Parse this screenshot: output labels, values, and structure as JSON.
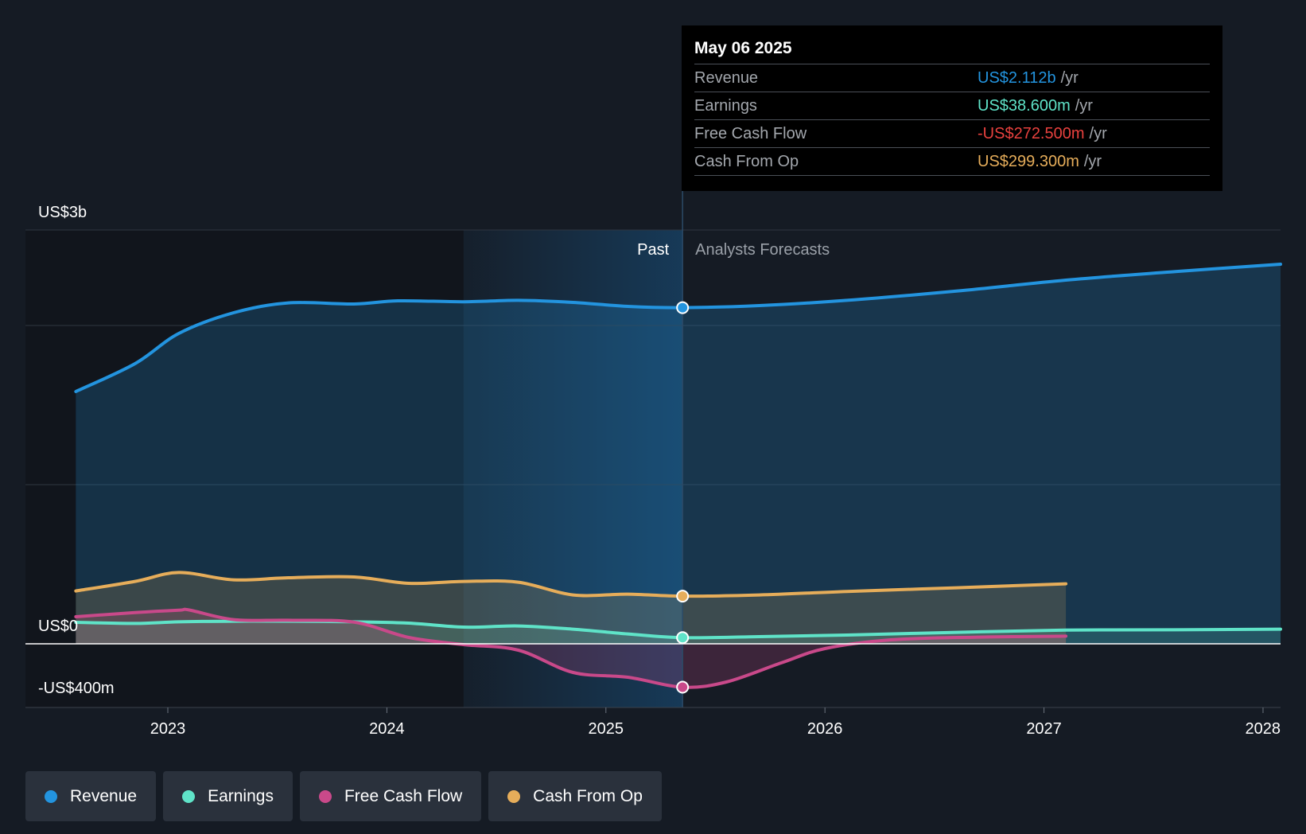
{
  "chart_data": {
    "type": "area",
    "title": "",
    "x_unit": "year",
    "y_unit": "US$ millions",
    "ylim": [
      -400,
      2600
    ],
    "y_tick_labels": [
      {
        "value": 2600,
        "label": "US$3b"
      },
      {
        "value": 0,
        "label": "US$0"
      },
      {
        "value": -400,
        "label": "-US$400m"
      }
    ],
    "x_ticks": [
      2023,
      2024,
      2025,
      2026,
      2027,
      2028
    ],
    "xlim": [
      2022.35,
      2028.08
    ],
    "past_start": 2024.35,
    "divider": 2025.35,
    "past_label": "Past",
    "forecast_label": "Analysts Forecasts",
    "series": [
      {
        "name": "Revenue",
        "color": "#2394df",
        "fill": true,
        "marker": 2112,
        "points": [
          [
            2022.58,
            1585
          ],
          [
            2022.85,
            1760
          ],
          [
            2023.05,
            1950
          ],
          [
            2023.3,
            2080
          ],
          [
            2023.55,
            2142
          ],
          [
            2023.85,
            2135
          ],
          [
            2024.05,
            2155
          ],
          [
            2024.35,
            2149
          ],
          [
            2024.6,
            2158
          ],
          [
            2024.85,
            2145
          ],
          [
            2025.1,
            2120
          ],
          [
            2025.35,
            2112
          ],
          [
            2025.7,
            2125
          ],
          [
            2026.1,
            2158
          ],
          [
            2026.6,
            2216
          ],
          [
            2027.1,
            2285
          ],
          [
            2027.6,
            2339
          ],
          [
            2028.08,
            2385
          ]
        ]
      },
      {
        "name": "Earnings",
        "color": "#5fe3c8",
        "fill": true,
        "marker": 38.6,
        "points": [
          [
            2022.58,
            135
          ],
          [
            2022.85,
            128
          ],
          [
            2023.05,
            138
          ],
          [
            2023.3,
            142
          ],
          [
            2023.55,
            142
          ],
          [
            2023.85,
            138
          ],
          [
            2024.1,
            130
          ],
          [
            2024.35,
            105
          ],
          [
            2024.6,
            112
          ],
          [
            2024.85,
            92
          ],
          [
            2025.1,
            62
          ],
          [
            2025.35,
            38.6
          ],
          [
            2025.7,
            45
          ],
          [
            2026.1,
            55
          ],
          [
            2026.6,
            72
          ],
          [
            2027.1,
            86
          ],
          [
            2027.6,
            88
          ],
          [
            2028.08,
            92
          ]
        ]
      },
      {
        "name": "Free Cash Flow",
        "color": "#c9498a",
        "fill": true,
        "marker": -272.5,
        "points": [
          [
            2022.58,
            170
          ],
          [
            2022.85,
            196
          ],
          [
            2023.05,
            211
          ],
          [
            2023.1,
            212
          ],
          [
            2023.3,
            152
          ],
          [
            2023.55,
            148
          ],
          [
            2023.85,
            136
          ],
          [
            2024.1,
            40
          ],
          [
            2024.35,
            -5
          ],
          [
            2024.6,
            -40
          ],
          [
            2024.85,
            -180
          ],
          [
            2025.1,
            -210
          ],
          [
            2025.35,
            -272.5
          ],
          [
            2025.55,
            -240
          ],
          [
            2025.8,
            -120
          ],
          [
            2026.0,
            -30
          ],
          [
            2026.3,
            25
          ],
          [
            2026.7,
            42
          ],
          [
            2027.1,
            48
          ]
        ]
      },
      {
        "name": "Cash From Op",
        "color": "#e6ad5a",
        "fill": true,
        "marker": 299.3,
        "points": [
          [
            2022.58,
            332
          ],
          [
            2022.85,
            392
          ],
          [
            2023.05,
            448
          ],
          [
            2023.3,
            402
          ],
          [
            2023.55,
            415
          ],
          [
            2023.85,
            420
          ],
          [
            2024.1,
            380
          ],
          [
            2024.35,
            392
          ],
          [
            2024.6,
            387
          ],
          [
            2024.85,
            307
          ],
          [
            2025.1,
            312
          ],
          [
            2025.35,
            299.3
          ],
          [
            2025.7,
            307
          ],
          [
            2026.1,
            329
          ],
          [
            2026.6,
            352
          ],
          [
            2027.1,
            377
          ]
        ]
      }
    ]
  },
  "tooltip": {
    "date": "May 06 2025",
    "rows": [
      {
        "name": "Revenue",
        "value": "US$2.112b",
        "unit": "/yr",
        "color": "#2394df"
      },
      {
        "name": "Earnings",
        "value": "US$38.600m",
        "unit": "/yr",
        "color": "#5fe3c8"
      },
      {
        "name": "Free Cash Flow",
        "value": "-US$272.500m",
        "unit": "/yr",
        "color": "#e8413e"
      },
      {
        "name": "Cash From Op",
        "value": "US$299.300m",
        "unit": "/yr",
        "color": "#e6ad5a"
      }
    ]
  },
  "legend": [
    {
      "label": "Revenue",
      "color": "#2394df"
    },
    {
      "label": "Earnings",
      "color": "#5fe3c8"
    },
    {
      "label": "Free Cash Flow",
      "color": "#c9498a"
    },
    {
      "label": "Cash From Op",
      "color": "#e6ad5a"
    }
  ]
}
